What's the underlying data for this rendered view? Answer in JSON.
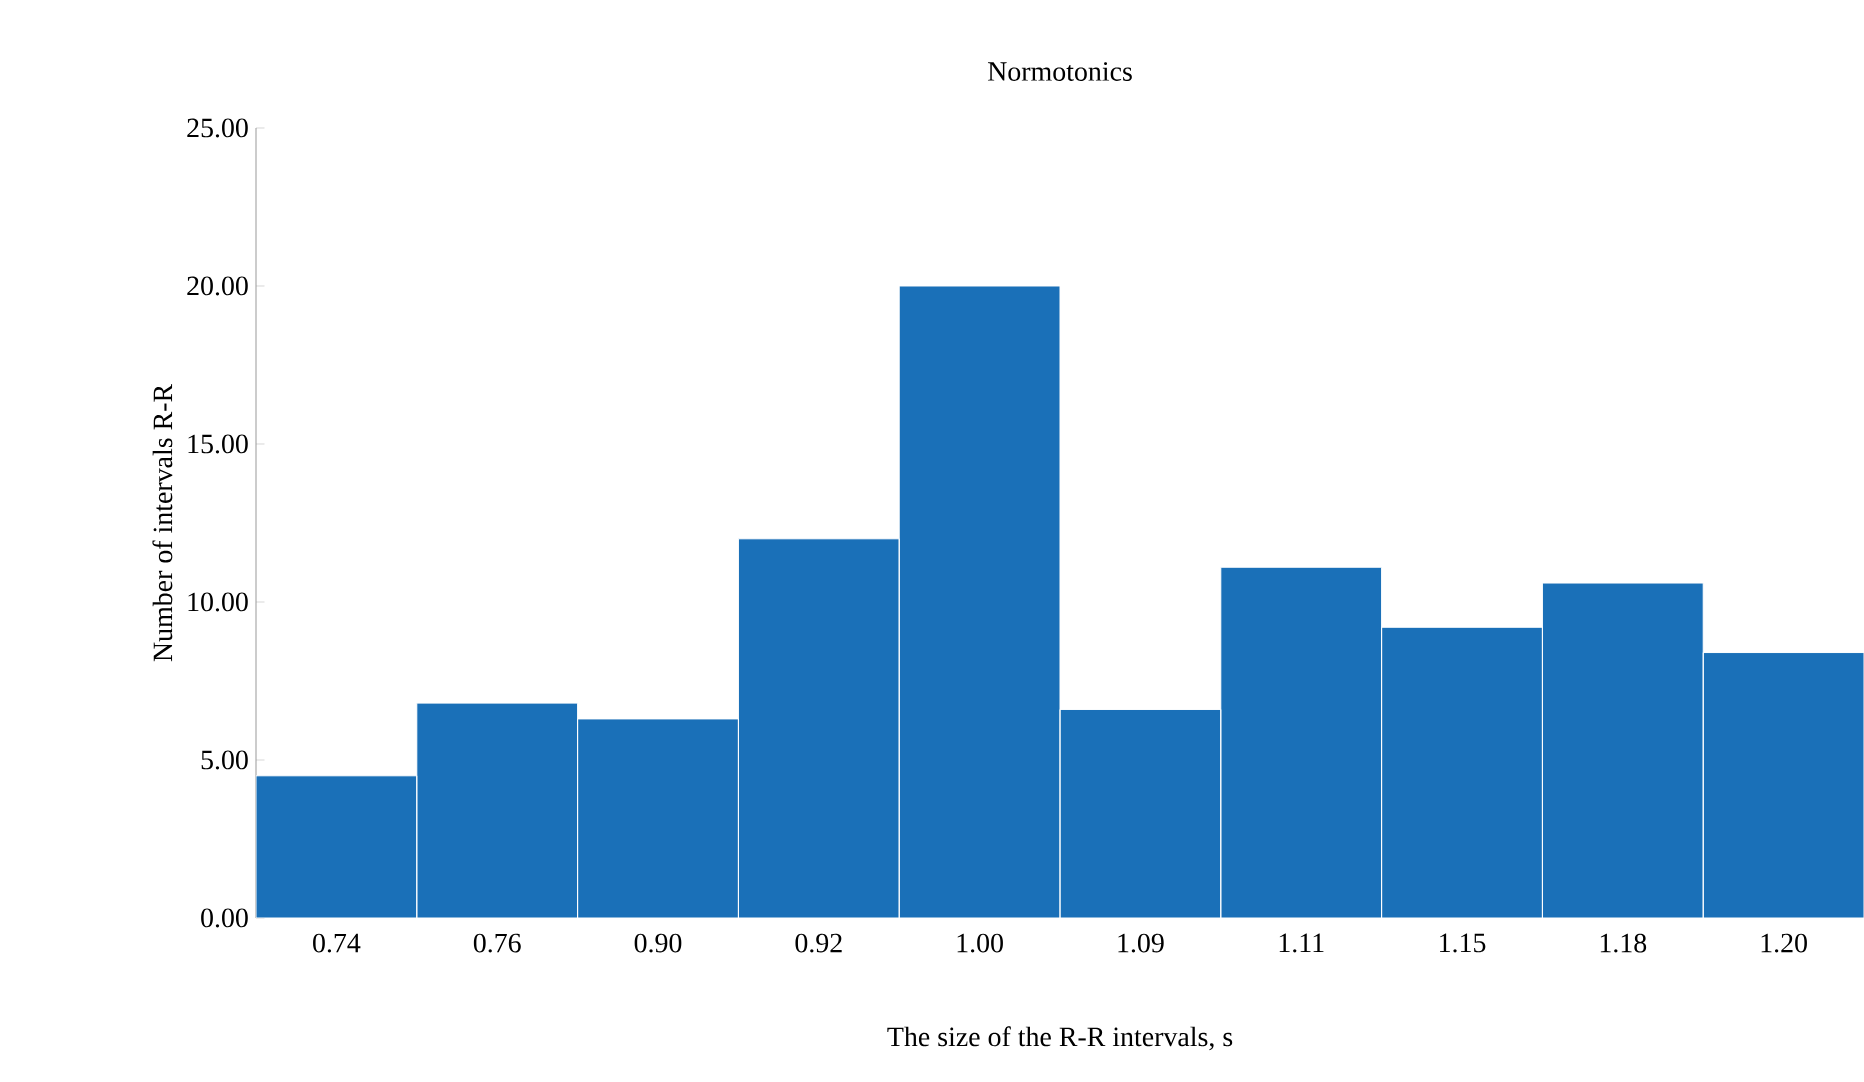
{
  "chart_data": {
    "type": "bar",
    "title": "Normotonics",
    "xlabel": "The size of the R-R intervals, s",
    "ylabel": "Number of intervals R-R",
    "categories": [
      "0.74",
      "0.76",
      "0.90",
      "0.92",
      "1.00",
      "1.09",
      "1.11",
      "1.15",
      "1.18",
      "1.20"
    ],
    "values": [
      4.5,
      6.8,
      6.3,
      12.0,
      20.0,
      6.6,
      11.1,
      9.2,
      10.6,
      8.4
    ],
    "color": "#1a70b8",
    "ylim": [
      0,
      25
    ],
    "yticks": [
      {
        "value": 0,
        "label": "0.00"
      },
      {
        "value": 5,
        "label": "5.00"
      },
      {
        "value": 10,
        "label": "10.00"
      },
      {
        "value": 15,
        "label": "15.00"
      },
      {
        "value": 20,
        "label": "20.00"
      },
      {
        "value": 25,
        "label": "25.00"
      }
    ]
  }
}
